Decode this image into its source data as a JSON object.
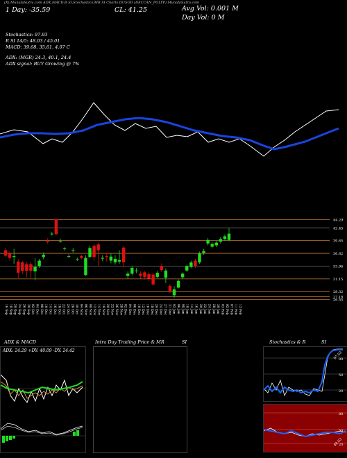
{
  "header": {
    "row": "(X) MunafaSutra.com   ADX,MACD,B   SI,Stochastics,MR   SI Charts DUSOD   (DECCAN_POLYP) MunafaSutra.com",
    "day_change": "1 Day: -35.59",
    "close": "CL: 41.25",
    "avg_vol": "Avg Vol: 0.001 M",
    "day_vol": "Day Vol: 0   M"
  },
  "indicators": {
    "stochastics": "Stochastics: 97.93",
    "rsi": "R   SI 14/5: 48.03 / 45.01",
    "macd": "MACD: 39.68, 35.61, 4.07 C",
    "adx": "ADX:                 (MGR) 24.3, 40.1, 24.4",
    "adx_signal": "ADX  signal:                           BUY Growing @ 7%"
  },
  "price_levels": [
    "44.29",
    "42.45",
    "39.65",
    "36.82",
    "33.96",
    "31.15",
    "28.32",
    "27.18",
    "26.55"
  ],
  "dates": [
    "16 Sep",
    "18 Sep",
    "20 Sep",
    "24 Sep",
    "26 Sep",
    "30 Sep",
    "02 Oct",
    "04 Oct",
    "08 Oct",
    "10 Oct",
    "14 Oct",
    "16 Oct",
    "18 Oct",
    "22 Oct",
    "24 Oct",
    "28 Oct",
    "30 Oct",
    "04 Nov",
    "06 Nov",
    "08 Nov",
    "12 Nov",
    "14 Nov",
    "18 Nov",
    "20 Nov",
    "22 Nov",
    "26 Nov",
    "28 Nov",
    "02 Dec",
    "04 Dec",
    "06 Dec",
    "10 Dec",
    "12 Dec",
    "16 Dec",
    "18 Dec",
    "20 Dec",
    "24 Dec",
    "27 Dec",
    "31 Dec",
    "02 Jan",
    "06 Jan",
    "08 Jan",
    "10 Jan",
    "14 Jan",
    "16 Jan",
    "20 Jan",
    "22 Jan",
    "24 Jan",
    "28 Jan",
    "30 Jan",
    "03 Feb",
    "05 Feb",
    "07 Feb",
    "11 Feb",
    "13 Feb"
  ],
  "panels": {
    "adx_title": "ADX  & MACD",
    "adx_values": "ADX: 24.29  +DY: 40.09  -DY: 24.42",
    "intraday_title": "Intra  Day Trading Price  & MR",
    "intraday_si": "SI",
    "stoch_title": "Stochastics & R",
    "stoch_si": "SI",
    "stoch_levels": [
      "80",
      "50",
      "20"
    ],
    "stoch_value": "97.93",
    "rsi_levels": [
      "80",
      "50",
      "20"
    ],
    "rsi_value": "48.03"
  },
  "colors": {
    "up": "#22dd22",
    "down": "#dd1111",
    "ma_blue": "#1a44dd",
    "level_line": "#c27a2e",
    "rsi_bg": "#8b0000"
  },
  "chart_data": {
    "type": "candlestick",
    "ylim": [
      26.5,
      45
    ],
    "candles": [
      {
        "o": 37.5,
        "c": 36.3,
        "h": 38.0,
        "l": 35.9
      },
      {
        "o": 36.8,
        "c": 35.8,
        "h": 37.3,
        "l": 35.2
      },
      {
        "o": 36.0,
        "c": 36.2,
        "h": 37.8,
        "l": 34.5
      },
      {
        "o": 35.0,
        "c": 32.5,
        "h": 35.6,
        "l": 31.3
      },
      {
        "o": 34.8,
        "c": 32.9,
        "h": 35.2,
        "l": 32.2
      },
      {
        "o": 34.4,
        "c": 32.9,
        "h": 34.9,
        "l": 31.5
      },
      {
        "o": 34.4,
        "c": 32.9,
        "h": 35.0,
        "l": 31.3
      },
      {
        "o": 32.8,
        "c": 33.8,
        "h": 35.8,
        "l": 30.8
      },
      {
        "o": 34.0,
        "c": 35.2,
        "h": 35.6,
        "l": 33.6
      },
      {
        "o": 36.0,
        "c": 36.5,
        "h": 37.0,
        "l": 35.5
      },
      {
        "o": 39.5,
        "c": 39.3,
        "h": 40.2,
        "l": 38.9
      },
      {
        "o": 41.2,
        "c": 41.2,
        "h": 41.6,
        "l": 40.8
      },
      {
        "o": 44.4,
        "c": 41.1,
        "h": 44.6,
        "l": 40.8
      },
      {
        "o": 39.6,
        "c": 39.6,
        "h": 40.1,
        "l": 39.2
      },
      {
        "o": 37.8,
        "c": 37.9,
        "h": 38.2,
        "l": 37.4
      },
      {
        "o": 36.2,
        "c": 36.2,
        "h": 36.6,
        "l": 35.8
      },
      {
        "o": 37.5,
        "c": 37.5,
        "h": 38.0,
        "l": 37.0
      },
      {
        "o": 35.5,
        "c": 35.5,
        "h": 35.9,
        "l": 35.1
      },
      {
        "o": 36.2,
        "c": 35.8,
        "h": 36.5,
        "l": 35.5
      },
      {
        "o": 32.0,
        "c": 35.8,
        "h": 36.4,
        "l": 31.8
      },
      {
        "o": 36.0,
        "c": 38.0,
        "h": 38.5,
        "l": 35.8
      },
      {
        "o": 38.5,
        "c": 36.0,
        "h": 38.9,
        "l": 35.2
      },
      {
        "o": 38.8,
        "c": 37.5,
        "h": 39.2,
        "l": 34.0
      },
      {
        "o": 35.8,
        "c": 35.8,
        "h": 36.4,
        "l": 35.1
      },
      {
        "o": 36.2,
        "c": 36.0,
        "h": 37.0,
        "l": 35.0
      },
      {
        "o": 35.2,
        "c": 36.1,
        "h": 36.8,
        "l": 34.6
      },
      {
        "o": 34.8,
        "c": 35.6,
        "h": 36.4,
        "l": 34.3
      },
      {
        "o": 35.0,
        "c": 35.3,
        "h": 37.5,
        "l": 34.5
      },
      {
        "o": 38.1,
        "c": 34.8,
        "h": 38.5,
        "l": 33.7
      },
      {
        "o": 31.8,
        "c": 32.3,
        "h": 32.8,
        "l": 31.2
      },
      {
        "o": 32.3,
        "c": 33.6,
        "h": 34.0,
        "l": 31.9
      },
      {
        "o": 33.0,
        "c": 33.0,
        "h": 33.6,
        "l": 32.4
      },
      {
        "o": 32.3,
        "c": 31.8,
        "h": 32.8,
        "l": 31.2
      },
      {
        "o": 32.6,
        "c": 31.6,
        "h": 32.9,
        "l": 31.0
      },
      {
        "o": 32.2,
        "c": 31.2,
        "h": 32.6,
        "l": 30.7
      },
      {
        "o": 32.1,
        "c": 29.9,
        "h": 32.5,
        "l": 29.6
      },
      {
        "o": 31.6,
        "c": 32.5,
        "h": 32.9,
        "l": 31.3
      },
      {
        "o": 34.0,
        "c": 33.1,
        "h": 34.6,
        "l": 32.7
      },
      {
        "o": 31.4,
        "c": 33.0,
        "h": 33.5,
        "l": 30.2
      },
      {
        "o": 29.6,
        "c": 28.3,
        "h": 30.0,
        "l": 27.9
      },
      {
        "o": 27.5,
        "c": 28.8,
        "h": 29.5,
        "l": 26.9
      },
      {
        "o": 29.2,
        "c": 30.7,
        "h": 31.0,
        "l": 29.0
      },
      {
        "o": 31.5,
        "c": 32.3,
        "h": 32.6,
        "l": 31.2
      },
      {
        "o": 33.0,
        "c": 34.0,
        "h": 34.3,
        "l": 32.7
      },
      {
        "o": 33.8,
        "c": 34.8,
        "h": 35.2,
        "l": 33.5
      },
      {
        "o": 35.2,
        "c": 34.0,
        "h": 35.6,
        "l": 33.6
      },
      {
        "o": 34.8,
        "c": 36.8,
        "h": 37.2,
        "l": 34.5
      },
      {
        "o": 36.9,
        "c": 37.3,
        "h": 37.8,
        "l": 36.5
      },
      {
        "o": 39.0,
        "c": 39.8,
        "h": 40.2,
        "l": 38.6
      },
      {
        "o": 38.3,
        "c": 38.9,
        "h": 39.3,
        "l": 37.9
      },
      {
        "o": 38.6,
        "c": 39.2,
        "h": 39.6,
        "l": 38.2
      },
      {
        "o": 39.4,
        "c": 40.0,
        "h": 40.4,
        "l": 39.0
      },
      {
        "o": 40.0,
        "c": 40.6,
        "h": 41.0,
        "l": 39.6
      },
      {
        "o": 39.8,
        "c": 41.2,
        "h": 42.4,
        "l": 39.5
      }
    ]
  }
}
